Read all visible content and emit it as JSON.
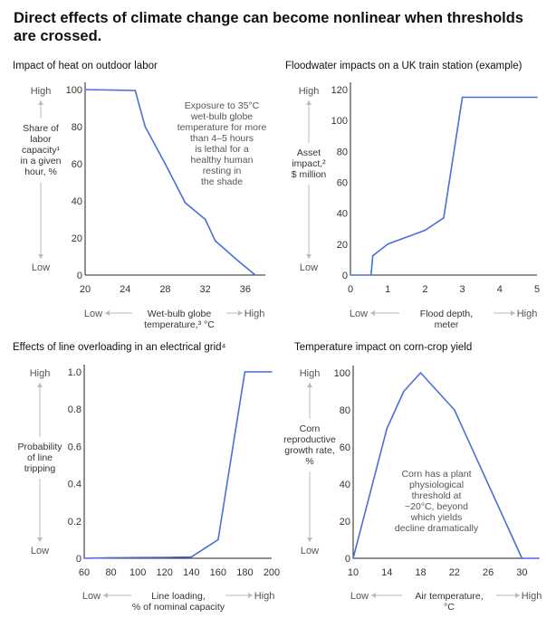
{
  "page": {
    "title": "Direct effects of climate change can become nonlinear when thresholds are crossed."
  },
  "style": {
    "line_color": "#4a6fd8",
    "axis_color": "#222222",
    "muted_text": "#555555",
    "arrow_color": "#bbbbbb"
  },
  "chart_data": [
    {
      "type": "line",
      "title": "Impact of heat on outdoor labor",
      "ylabel": "Share of labor capacity¹ in a given hour, %",
      "ylabel_lines": [
        "Share of",
        "labor",
        "capacity¹",
        "in a given",
        "hour, %"
      ],
      "xlabel": "Wet-bulb globe temperature,³ °C",
      "xlabel_lines": [
        "Wet-bulb globe",
        "temperature,³ °C"
      ],
      "y_high_label": "High",
      "y_low_label": "Low",
      "x_low_label": "Low",
      "x_high_label": "High",
      "xlim": [
        20,
        38
      ],
      "ylim": [
        0,
        100
      ],
      "xticks": [
        20,
        24,
        28,
        32,
        36
      ],
      "yticks": [
        0,
        20,
        40,
        60,
        80,
        100
      ],
      "x": [
        20,
        25,
        26,
        28,
        30,
        32,
        33,
        35,
        37
      ],
      "y": [
        100,
        99.5,
        80,
        60,
        39,
        30,
        18.5,
        9,
        0
      ],
      "annotation_lines": [
        "Exposure to 35°C",
        "wet-bulb globe",
        "temperature for more",
        "than 4–5 hours",
        "is lethal for a",
        "healthy human",
        "resting in",
        "the shade"
      ]
    },
    {
      "type": "line",
      "title": "Floodwater impacts on a UK train station (example)",
      "ylabel": "Asset impact,² $ million",
      "ylabel_lines": [
        "Asset",
        "impact,²",
        "$ million"
      ],
      "xlabel": "Flood depth, meter",
      "xlabel_lines": [
        "Flood depth,",
        "meter"
      ],
      "y_high_label": "High",
      "y_low_label": "Low",
      "x_low_label": "Low",
      "x_high_label": "High",
      "xlim": [
        0,
        5
      ],
      "ylim": [
        0,
        120
      ],
      "xticks": [
        0,
        1,
        2,
        3,
        4,
        5
      ],
      "yticks": [
        0,
        20,
        40,
        60,
        80,
        100,
        120
      ],
      "x": [
        0,
        0.55,
        0.6,
        1.0,
        2.0,
        2.5,
        3.0,
        5.0
      ],
      "y": [
        0,
        0,
        12.5,
        20,
        29,
        37,
        115,
        115
      ],
      "annotation_lines": []
    },
    {
      "type": "line",
      "title": "Effects of line overloading in an electrical grid⁴",
      "ylabel": "Probability of line tripping",
      "ylabel_lines": [
        "Probability",
        "of line",
        "tripping"
      ],
      "xlabel": "Line loading, % of nominal capacity",
      "xlabel_lines": [
        "Line loading,",
        "% of nominal capacity"
      ],
      "y_high_label": "High",
      "y_low_label": "Low",
      "x_low_label": "Low",
      "x_high_label": "High",
      "xlim": [
        60,
        200
      ],
      "ylim": [
        0,
        1.0
      ],
      "xticks": [
        60,
        80,
        100,
        120,
        140,
        160,
        180,
        200
      ],
      "yticks": [
        0,
        0.2,
        0.4,
        0.6,
        0.8,
        1.0
      ],
      "yticks_labels": [
        "0",
        "0.2",
        "0.4",
        "0.6",
        "0.8",
        "1.0"
      ],
      "x": [
        60,
        80,
        100,
        120,
        140,
        160,
        170,
        180,
        200
      ],
      "y": [
        0,
        0.003,
        0.004,
        0.005,
        0.007,
        0.1,
        0.55,
        1.0,
        1.0
      ],
      "annotation_lines": []
    },
    {
      "type": "line",
      "title": "Temperature impact on corn-crop yield",
      "ylabel": "Corn reproductive growth rate, %",
      "ylabel_lines": [
        "Corn",
        "reproductive",
        "growth rate,",
        "%"
      ],
      "xlabel": "Air temperature, °C",
      "xlabel_lines": [
        "Air temperature,",
        "°C"
      ],
      "y_high_label": "High",
      "y_low_label": "Low",
      "x_low_label": "Low",
      "x_high_label": "High",
      "xlim": [
        10,
        32
      ],
      "ylim": [
        0,
        100
      ],
      "xticks": [
        10,
        14,
        18,
        22,
        26,
        30
      ],
      "yticks": [
        0,
        20,
        40,
        60,
        80,
        100
      ],
      "x": [
        10,
        14,
        16,
        18,
        22,
        30,
        32
      ],
      "y": [
        0,
        70,
        90,
        100,
        80,
        0,
        0
      ],
      "annotation_lines": [
        "Corn has a plant",
        "physiological",
        "threshold at",
        "~20°C, beyond",
        "which yields",
        "decline dramatically"
      ]
    }
  ]
}
